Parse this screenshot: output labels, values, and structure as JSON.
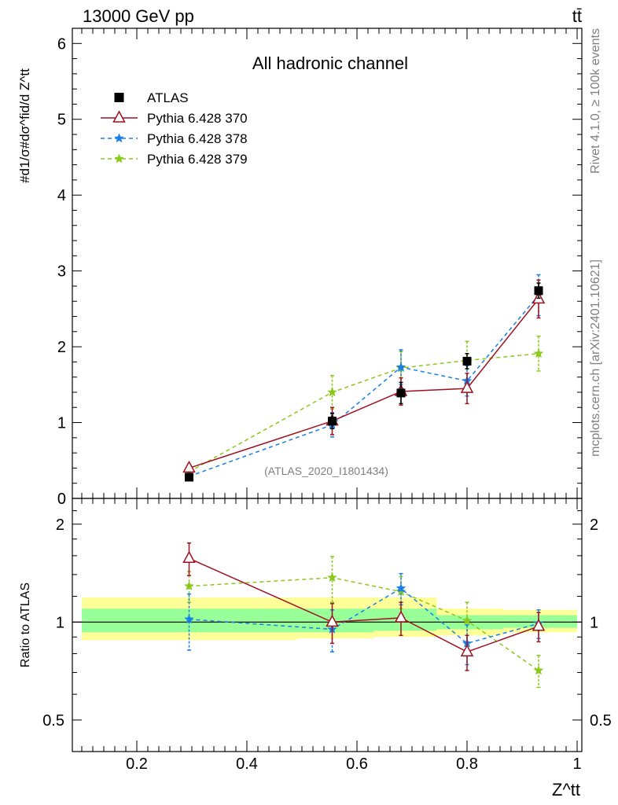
{
  "chart_data": [
    {
      "type": "line",
      "header_left": "13000 GeV pp",
      "header_right": "tt̄",
      "title": "All hadronic channel",
      "ylabel": "#d1/σ#dσ^fid/d Z^tt",
      "ylim": [
        0,
        6.2
      ],
      "yticks": [
        "0",
        "1",
        "2",
        "3",
        "4",
        "5",
        "6"
      ],
      "watermark": "(ATLAS_2020_I1801434)",
      "side_text_top": "Rivet 4.1.0, ≥ 100k events",
      "side_text_bottom": "mcplots.cern.ch [arXiv:2401.10621]",
      "x": [
        0.295,
        0.555,
        0.68,
        0.8,
        0.93
      ],
      "series": [
        {
          "name": "ATLAS",
          "color": "#000000",
          "marker": "square",
          "values": [
            0.28,
            1.02,
            1.39,
            1.81,
            2.74
          ],
          "err": [
            0.03,
            0.1,
            0.14,
            0.1,
            0.1
          ]
        },
        {
          "name": "Pythia 6.428 370",
          "color": "#a01020",
          "marker": "triangle",
          "dash": "",
          "values": [
            0.4,
            1.02,
            1.41,
            1.45,
            2.63
          ],
          "err": [
            0.05,
            0.18,
            0.18,
            0.2,
            0.25
          ]
        },
        {
          "name": "Pythia 6.428 378",
          "color": "#1a7fe6",
          "marker": "star",
          "dash": "5,4",
          "values": [
            0.29,
            0.97,
            1.73,
            1.55,
            2.68
          ],
          "err": [
            0.04,
            0.16,
            0.23,
            0.2,
            0.27
          ]
        },
        {
          "name": "Pythia 6.428 379",
          "color": "#8ac81a",
          "marker": "star",
          "dash": "5,4",
          "values": [
            0.35,
            1.4,
            1.72,
            1.82,
            1.91
          ],
          "err": [
            0.05,
            0.22,
            0.22,
            0.25,
            0.23
          ]
        }
      ]
    },
    {
      "type": "line",
      "ylabel": "Ratio to ATLAS",
      "xlabel": "Z^tt",
      "scale": "log",
      "ylim": [
        0.4,
        2.4
      ],
      "yticks": [
        "0.5",
        "1",
        "2"
      ],
      "xlim": [
        0.08,
        1.0
      ],
      "xticks": [
        "0.2",
        "0.4",
        "0.6",
        "0.8",
        "1"
      ],
      "band_edges": [
        0.1,
        0.49,
        0.63,
        0.745,
        0.865,
        1.0
      ],
      "band_yellow": [
        [
          0.88,
          1.19
        ],
        [
          0.89,
          1.19
        ],
        [
          0.9,
          1.19
        ],
        [
          0.91,
          1.1
        ],
        [
          0.93,
          1.09
        ]
      ],
      "band_green": [
        [
          0.93,
          1.1
        ],
        [
          0.93,
          1.1
        ],
        [
          0.94,
          1.1
        ],
        [
          0.95,
          1.05
        ],
        [
          0.96,
          1.05
        ]
      ],
      "x": [
        0.295,
        0.555,
        0.68,
        0.8,
        0.93
      ],
      "series": [
        {
          "name": "Pythia 6.428 370",
          "color": "#a01020",
          "marker": "triangle",
          "dash": "",
          "values": [
            1.57,
            1.0,
            1.03,
            0.81,
            0.97
          ],
          "err": [
            0.18,
            0.14,
            0.12,
            0.1,
            0.1
          ]
        },
        {
          "name": "Pythia 6.428 378",
          "color": "#1a7fe6",
          "marker": "star",
          "dash": "5,4",
          "values": [
            1.02,
            0.95,
            1.27,
            0.86,
            0.99
          ],
          "err": [
            0.2,
            0.14,
            0.14,
            0.12,
            0.1
          ]
        },
        {
          "name": "Pythia 6.428 379",
          "color": "#8ac81a",
          "marker": "star",
          "dash": "5,4",
          "values": [
            1.29,
            1.37,
            1.24,
            1.01,
            0.71
          ],
          "err": [
            0.14,
            0.22,
            0.14,
            0.14,
            0.08
          ]
        }
      ]
    }
  ]
}
